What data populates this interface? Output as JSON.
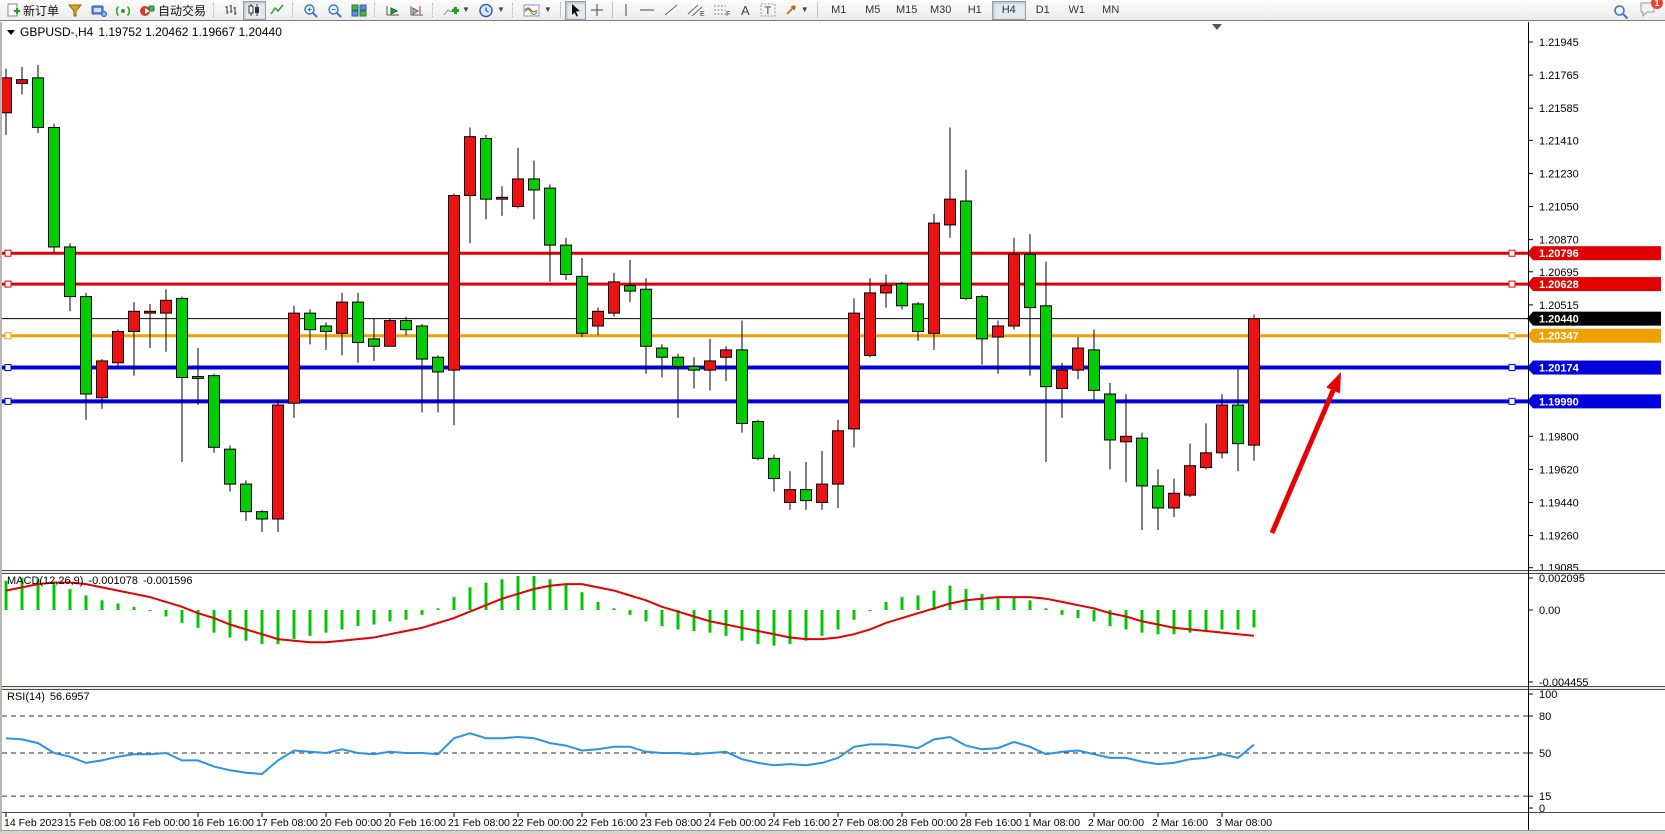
{
  "toolbar": {
    "new_order_label": "新订单",
    "autotrade_label": "自动交易",
    "timeframes": [
      "M1",
      "M5",
      "M15",
      "M30",
      "H1",
      "H4",
      "D1",
      "W1",
      "MN"
    ],
    "active_timeframe": "H4",
    "notification_count": "1"
  },
  "chart": {
    "title_symbol": "GBPUSD-,H4",
    "title_ohlc": "1.19752 1.20462 1.19667 1.20440",
    "price_ticks": [
      "1.21945",
      "1.21765",
      "1.21585",
      "1.21410",
      "1.21230",
      "1.21050",
      "1.20870",
      "1.20695",
      "1.20515",
      "1.20340",
      "1.20160",
      "1.19985",
      "1.19800",
      "1.19620",
      "1.19440",
      "1.19260",
      "1.19085"
    ],
    "level_lines": [
      {
        "name": "resistance-line-1",
        "price": "1.20796",
        "color": "#e00000",
        "width": 3,
        "handles": true
      },
      {
        "name": "resistance-line-2",
        "price": "1.20628",
        "color": "#e00000",
        "width": 3,
        "handles": true
      },
      {
        "name": "bid-price-line",
        "price": "1.20440",
        "color": "#000000",
        "width": 1,
        "handles": false
      },
      {
        "name": "pivot-line",
        "price": "1.20347",
        "color": "#efa000",
        "width": 3,
        "handles": true
      },
      {
        "name": "support-line-1",
        "price": "1.20174",
        "color": "#0000dd",
        "width": 4,
        "handles": true
      },
      {
        "name": "support-line-2",
        "price": "1.19990",
        "color": "#0000dd",
        "width": 4,
        "handles": true
      }
    ],
    "time_labels": [
      "14 Feb 2023",
      "15 Feb 08:00",
      "16 Feb 00:00",
      "16 Feb 16:00",
      "17 Feb 08:00",
      "20 Feb 00:00",
      "20 Feb 16:00",
      "21 Feb 08:00",
      "22 Feb 00:00",
      "22 Feb 16:00",
      "23 Feb 08:00",
      "24 Feb 00:00",
      "24 Feb 16:00",
      "27 Feb 08:00",
      "28 Feb 00:00",
      "28 Feb 16:00",
      "1 Mar 08:00",
      "2 Mar 00:00",
      "2 Mar 16:00",
      "3 Mar 08:00"
    ]
  },
  "chart_data": {
    "type": "candlestick",
    "symbol": "GBPUSD-",
    "period": "H4",
    "up_color": "#ee1111",
    "down_color": "#00cc00",
    "price_range": [
      1.19085,
      1.21945
    ],
    "candles": [
      [
        1.2156,
        1.218,
        1.2144,
        1.2175
      ],
      [
        1.2172,
        1.2181,
        1.2166,
        1.2174
      ],
      [
        1.2175,
        1.2182,
        1.2145,
        1.2148
      ],
      [
        1.2148,
        1.215,
        1.208,
        1.2083
      ],
      [
        1.2083,
        1.2085,
        1.2048,
        1.2056
      ],
      [
        1.2056,
        1.2058,
        1.1989,
        1.2003
      ],
      [
        1.2001,
        1.2022,
        1.1995,
        1.2021
      ],
      [
        1.202,
        1.2038,
        1.2018,
        1.2037
      ],
      [
        1.2037,
        1.2053,
        1.2013,
        1.2048
      ],
      [
        1.2047,
        1.2052,
        1.2028,
        1.2048
      ],
      [
        1.2047,
        1.206,
        1.2026,
        1.2054
      ],
      [
        1.2055,
        1.2056,
        1.1966,
        1.2012
      ],
      [
        1.20125,
        1.2028,
        1.1997,
        1.20115
      ],
      [
        1.2013,
        1.2014,
        1.1971,
        1.1974
      ],
      [
        1.1973,
        1.1975,
        1.195,
        1.1954
      ],
      [
        1.1954,
        1.1956,
        1.1934,
        1.1939
      ],
      [
        1.1939,
        1.194,
        1.1928,
        1.1935
      ],
      [
        1.1935,
        1.2,
        1.1928,
        1.1997
      ],
      [
        1.1998,
        1.2051,
        1.199,
        1.2047
      ],
      [
        1.2047,
        1.2049,
        1.203,
        1.2038
      ],
      [
        1.204,
        1.2042,
        1.2027,
        1.2037
      ],
      [
        1.2036,
        1.2058,
        1.2024,
        1.2053
      ],
      [
        1.2053,
        1.2058,
        1.202,
        1.2031
      ],
      [
        1.2033,
        1.2044,
        1.2021,
        1.2029
      ],
      [
        1.2029,
        1.2044,
        1.2029,
        1.2043
      ],
      [
        1.2043,
        1.2045,
        1.2035,
        1.2038
      ],
      [
        1.204,
        1.2041,
        1.1993,
        1.2022
      ],
      [
        1.2023,
        1.2024,
        1.1993,
        1.2015
      ],
      [
        1.2016,
        1.2112,
        1.1986,
        1.2111
      ],
      [
        1.2111,
        1.2148,
        1.2085,
        1.2143
      ],
      [
        1.2142,
        1.2144,
        1.2098,
        1.2109
      ],
      [
        1.2109,
        1.2116,
        1.21,
        1.211
      ],
      [
        1.2105,
        1.2137,
        1.2104,
        1.212
      ],
      [
        1.212,
        1.213,
        1.2098,
        1.2114
      ],
      [
        1.2115,
        1.2117,
        1.2064,
        1.2084
      ],
      [
        1.2084,
        1.2088,
        1.2065,
        1.2068
      ],
      [
        1.2067,
        1.2077,
        1.2034,
        1.2036
      ],
      [
        1.204,
        1.205,
        1.2035,
        1.2048
      ],
      [
        1.2047,
        1.2069,
        1.2045,
        1.2064
      ],
      [
        1.2062,
        1.2076,
        1.2053,
        1.2059
      ],
      [
        1.206,
        1.2066,
        1.2014,
        1.2029
      ],
      [
        1.2028,
        1.203,
        1.2012,
        1.2023
      ],
      [
        1.2023,
        1.2025,
        1.199,
        1.2018
      ],
      [
        1.2018,
        1.2023,
        1.2006,
        1.2016
      ],
      [
        1.2016,
        1.2033,
        1.2005,
        1.2021
      ],
      [
        1.2023,
        1.2029,
        1.201,
        1.2027
      ],
      [
        1.2027,
        1.2043,
        1.1982,
        1.1987
      ],
      [
        1.1988,
        1.1989,
        1.1967,
        1.1968
      ],
      [
        1.1968,
        1.197,
        1.195,
        1.1957
      ],
      [
        1.1944,
        1.1961,
        1.194,
        1.1951
      ],
      [
        1.1951,
        1.1966,
        1.194,
        1.1945
      ],
      [
        1.1944,
        1.1972,
        1.194,
        1.1954
      ],
      [
        1.1954,
        1.1989,
        1.1941,
        1.1983
      ],
      [
        1.1984,
        1.2055,
        1.1974,
        1.2047
      ],
      [
        1.2024,
        1.2066,
        1.2023,
        1.2058
      ],
      [
        1.2058,
        1.2068,
        1.205,
        1.2062
      ],
      [
        1.2063,
        1.2064,
        1.2049,
        1.2051
      ],
      [
        1.2052,
        1.2053,
        1.2032,
        1.2037
      ],
      [
        1.2036,
        1.2101,
        1.2027,
        1.2096
      ],
      [
        1.2095,
        1.2148,
        1.2088,
        1.2109
      ],
      [
        1.2108,
        1.2125,
        1.2054,
        1.2055
      ],
      [
        1.2056,
        1.2057,
        1.2019,
        1.2033
      ],
      [
        1.2034,
        1.2043,
        1.2014,
        1.204
      ],
      [
        1.204,
        1.2088,
        1.2038,
        1.2079
      ],
      [
        1.2079,
        1.209,
        1.2013,
        1.205
      ],
      [
        1.2051,
        1.2075,
        1.1966,
        1.2007
      ],
      [
        1.2006,
        1.202,
        1.199,
        1.2016
      ],
      [
        1.2016,
        1.2034,
        1.2011,
        1.2028
      ],
      [
        1.2027,
        1.2038,
        1.1999,
        1.2005
      ],
      [
        1.2003,
        1.2009,
        1.1962,
        1.1978
      ],
      [
        1.1977,
        1.2003,
        1.1955,
        1.198
      ],
      [
        1.1979,
        1.1982,
        1.1929,
        1.1953
      ],
      [
        1.1953,
        1.1962,
        1.1929,
        1.1941
      ],
      [
        1.1941,
        1.1957,
        1.1936,
        1.1949
      ],
      [
        1.1948,
        1.1976,
        1.1947,
        1.1964
      ],
      [
        1.1963,
        1.1987,
        1.1962,
        1.1971
      ],
      [
        1.1971,
        1.2003,
        1.1968,
        1.1997
      ],
      [
        1.1997,
        1.2017,
        1.1961,
        1.1976
      ],
      [
        1.19752,
        1.20462,
        1.19667,
        1.2044
      ]
    ],
    "indicators": {
      "macd": {
        "label": "MACD(12,26,9)",
        "value_main": "-0.001078",
        "value_signal": "-0.001596",
        "axis": [
          "0.002095",
          "0.00",
          "-0.004455"
        ],
        "histogram_color": "#00c400",
        "signal_color": "#e00000",
        "histogram": [
          0.0018,
          0.002,
          0.0019,
          0.0016,
          0.0013,
          0.0009,
          0.0006,
          0.0004,
          0.0002,
          0.0,
          -0.0004,
          -0.0008,
          -0.0011,
          -0.0014,
          -0.0017,
          -0.0019,
          -0.0021,
          -0.0021,
          -0.0018,
          -0.0016,
          -0.0014,
          -0.0012,
          -0.001,
          -0.0009,
          -0.0007,
          -0.0006,
          -0.0003,
          0.0001,
          0.0008,
          0.0014,
          0.0017,
          0.0019,
          0.0021,
          0.0021,
          0.0019,
          0.0016,
          0.0011,
          0.0005,
          0.0001,
          -0.0003,
          -0.0007,
          -0.001,
          -0.0012,
          -0.0013,
          -0.0014,
          -0.0016,
          -0.0019,
          -0.0021,
          -0.0022,
          -0.0021,
          -0.0019,
          -0.0016,
          -0.0012,
          -0.0006,
          0.0,
          0.0005,
          0.0008,
          0.0009,
          0.0012,
          0.0015,
          0.0013,
          0.001,
          0.0008,
          0.0008,
          0.0006,
          0.0001,
          -0.0003,
          -0.0005,
          -0.0007,
          -0.001,
          -0.0012,
          -0.0014,
          -0.0015,
          -0.0015,
          -0.0014,
          -0.0013,
          -0.0012,
          -0.0012,
          -0.001078
        ],
        "signal": [
          0.0012,
          0.0014,
          0.0016,
          0.0017,
          0.0017,
          0.0016,
          0.0014,
          0.0012,
          0.001,
          0.0008,
          0.0005,
          0.0002,
          -0.0002,
          -0.0005,
          -0.0009,
          -0.0012,
          -0.0015,
          -0.0018,
          -0.0019,
          -0.002,
          -0.002,
          -0.0019,
          -0.0018,
          -0.0017,
          -0.0015,
          -0.0013,
          -0.0011,
          -0.0008,
          -0.0005,
          -0.0001,
          0.0003,
          0.0007,
          0.001,
          0.0013,
          0.0015,
          0.0016,
          0.0016,
          0.0014,
          0.0012,
          0.0009,
          0.0006,
          0.0002,
          -0.0001,
          -0.0004,
          -0.0007,
          -0.0009,
          -0.0011,
          -0.0013,
          -0.0015,
          -0.0017,
          -0.0018,
          -0.0018,
          -0.0017,
          -0.0015,
          -0.0012,
          -0.0008,
          -0.0005,
          -0.0002,
          0.0001,
          0.0004,
          0.0006,
          0.0007,
          0.0008,
          0.0008,
          0.0008,
          0.0007,
          0.0005,
          0.0003,
          0.0001,
          -0.0002,
          -0.0004,
          -0.0007,
          -0.0009,
          -0.0011,
          -0.0012,
          -0.0013,
          -0.0014,
          -0.0015,
          -0.001596
        ]
      },
      "rsi": {
        "label": "RSI(14)",
        "value": "56.6957",
        "axis": [
          "100",
          "80",
          "50",
          "15",
          "0"
        ],
        "levels": [
          80,
          50,
          15
        ],
        "line_color": "#2f92e0",
        "values": [
          62,
          61,
          58,
          50,
          47,
          42,
          44,
          47,
          49,
          49,
          50,
          44,
          44,
          39,
          36,
          34,
          33,
          44,
          52,
          51,
          50,
          53,
          50,
          49,
          51,
          50,
          50,
          49,
          62,
          66,
          62,
          62,
          63,
          62,
          58,
          56,
          52,
          53,
          55,
          55,
          51,
          50,
          50,
          49,
          50,
          51,
          45,
          42,
          40,
          41,
          40,
          42,
          46,
          55,
          57,
          57,
          56,
          54,
          61,
          63,
          56,
          53,
          54,
          59,
          55,
          49,
          51,
          52,
          49,
          46,
          46,
          43,
          41,
          42,
          45,
          46,
          49,
          46,
          56.7
        ]
      }
    },
    "annotation_arrow": {
      "from": [
        1272,
        533
      ],
      "to": [
        1341,
        372
      ],
      "color": "#e60000"
    }
  }
}
